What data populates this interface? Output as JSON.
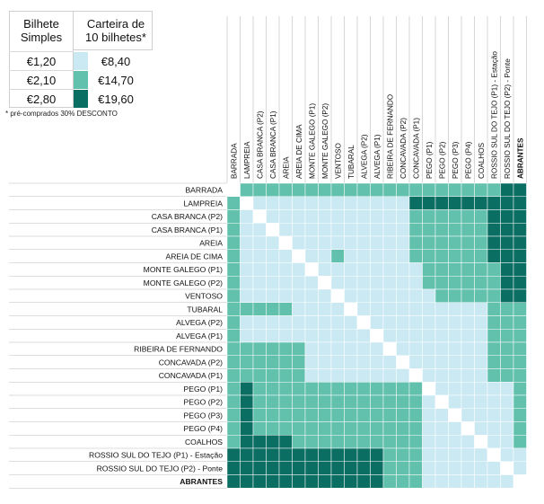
{
  "legend": {
    "single_header": "Bilhete Simples",
    "book_header": "Carteira de 10 bilhetes*",
    "rows": [
      {
        "single": "€1,20",
        "book": "€8,40",
        "color": "#cbe9f2"
      },
      {
        "single": "€2,10",
        "book": "€14,70",
        "color": "#62c1ad"
      },
      {
        "single": "€2,80",
        "book": "€19,60",
        "color": "#0b6e62"
      }
    ],
    "note": "* pré-comprados 30% DESCONTO"
  },
  "colors": {
    "t1": "#cbe9f2",
    "t2": "#62c1ad",
    "t3": "#0b6e62",
    "diag": "#ffffff",
    "grid": "#ffffff"
  },
  "stations": [
    "BARRADA",
    "LAMPREIA",
    "CASA BRANCA (P2)",
    "CASA BRANCA (P1)",
    "AREIA",
    "AREIA DE CIMA",
    "MONTE GALEGO (P1)",
    "MONTE GALEGO (P2)",
    "VENTOSO",
    "TUBARAL",
    "ALVEGA (P2)",
    "ALVEGA (P1)",
    "RIBEIRA DE FERNANDO",
    "CONCAVADA (P2)",
    "CONCAVADA (P1)",
    "PEGO (P1)",
    "PEGO (P2)",
    "PEGO (P3)",
    "PEGO (P4)",
    "COALHOS",
    "ROSSIO SUL DO TEJO (P1) - Estação",
    "ROSSIO SUL DO TEJO (P2) - Ponte",
    "ABRANTES"
  ],
  "bold_station": "ABRANTES",
  "matrix": [
    "02222222222222222222233",
    "20111111111111333333333",
    "21011111111111222222333",
    "21101111111111222222333",
    "21110111111111222222333",
    "21111011211111222222333",
    "21111101111111122222233",
    "21111110111111122222233",
    "21111111011111112222233",
    "22222111101111111111222",
    "21111111110111111111222",
    "21111111111011111111222",
    "22222211111101111111222",
    "22222211111110111111222",
    "22222211111111011111222",
    "23222222222222201111112",
    "23222222222222210111112",
    "23222222222222211011112",
    "23222222222222211101112",
    "23333222222222211110112",
    "33333333333322211111011",
    "33333333333322211111101",
    "33333333333322211111110"
  ]
}
